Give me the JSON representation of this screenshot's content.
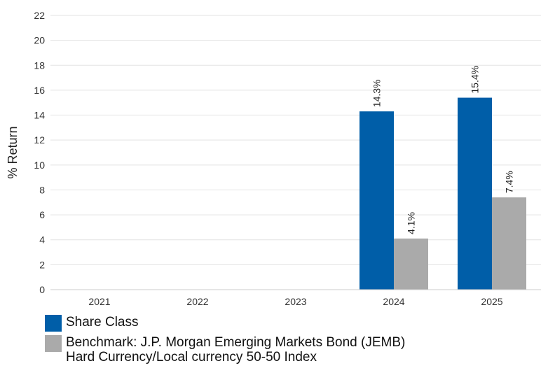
{
  "chart_data": {
    "type": "bar",
    "categories": [
      "2021",
      "2022",
      "2023",
      "2024",
      "2025"
    ],
    "series": [
      {
        "name": "Share Class",
        "values": [
          null,
          null,
          null,
          14.3,
          15.4
        ],
        "labels": [
          "",
          "",
          "",
          "14.3%",
          "15.4%"
        ],
        "color": "#005ea8"
      },
      {
        "name": "Benchmark: J.P. Morgan Emerging Markets Bond (JEMB) Hard Currency/Local currency 50-50 Index",
        "values": [
          null,
          null,
          null,
          4.1,
          7.4
        ],
        "labels": [
          "",
          "",
          "",
          "4.1%",
          "7.4%"
        ],
        "color": "#aaaaaa"
      }
    ],
    "ylabel": "% Return",
    "xlabel": "",
    "ylim": [
      0,
      22
    ],
    "yticks": [
      0,
      2,
      4,
      6,
      8,
      10,
      12,
      14,
      16,
      18,
      20,
      22
    ],
    "grid": true,
    "legend_position": "bottom"
  },
  "legend": {
    "share_class": "Share Class",
    "benchmark_line1": "Benchmark: J.P. Morgan Emerging Markets Bond (JEMB)",
    "benchmark_line2": "Hard Currency/Local currency 50-50 Index"
  }
}
